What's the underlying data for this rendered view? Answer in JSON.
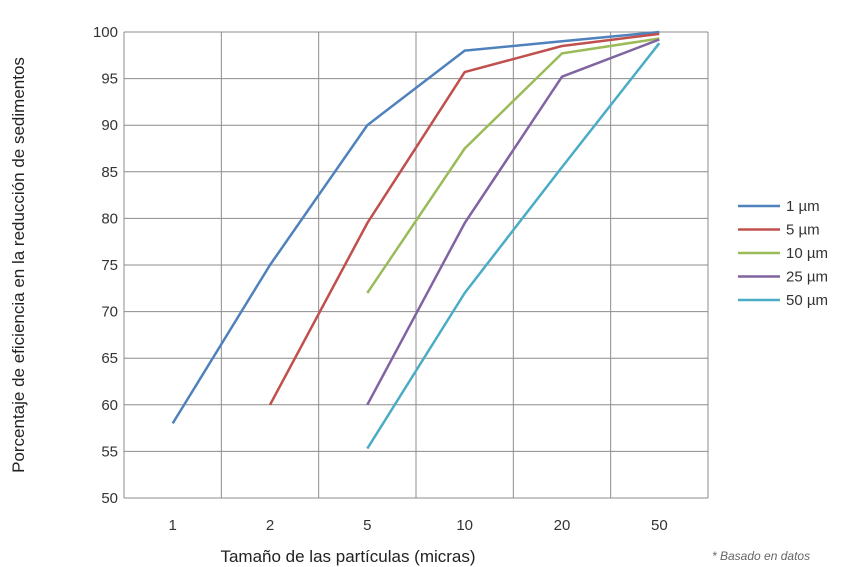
{
  "chart_data": {
    "type": "line",
    "title": "",
    "xlabel": "Tamaño de las partículas (micras)",
    "ylabel": "Porcentaje de eficiencia en la reducción de sedimentos",
    "categories": [
      "1",
      "2",
      "5",
      "10",
      "20",
      "50"
    ],
    "ylim": [
      50,
      100
    ],
    "yticks": [
      50,
      55,
      60,
      65,
      70,
      75,
      80,
      85,
      90,
      95,
      100
    ],
    "grid": true,
    "legend_position": "right",
    "series": [
      {
        "name": "1 µm",
        "color": "#4f81bd",
        "values": [
          58,
          75,
          90,
          98,
          99,
          100
        ]
      },
      {
        "name": "5 µm",
        "color": "#c0504d",
        "values": [
          null,
          60,
          79.5,
          95.7,
          98.5,
          99.8
        ]
      },
      {
        "name": "10 µm",
        "color": "#9bbb59",
        "values": [
          null,
          null,
          72,
          87.5,
          97.7,
          99.3
        ]
      },
      {
        "name": "25 µm",
        "color": "#8064a2",
        "values": [
          null,
          null,
          60,
          79.5,
          95.2,
          99.2
        ]
      },
      {
        "name": "50 µm",
        "color": "#4bacc6",
        "values": [
          null,
          null,
          55.3,
          72,
          85.5,
          98.8
        ]
      }
    ],
    "footnote": "* Basado en datos"
  }
}
